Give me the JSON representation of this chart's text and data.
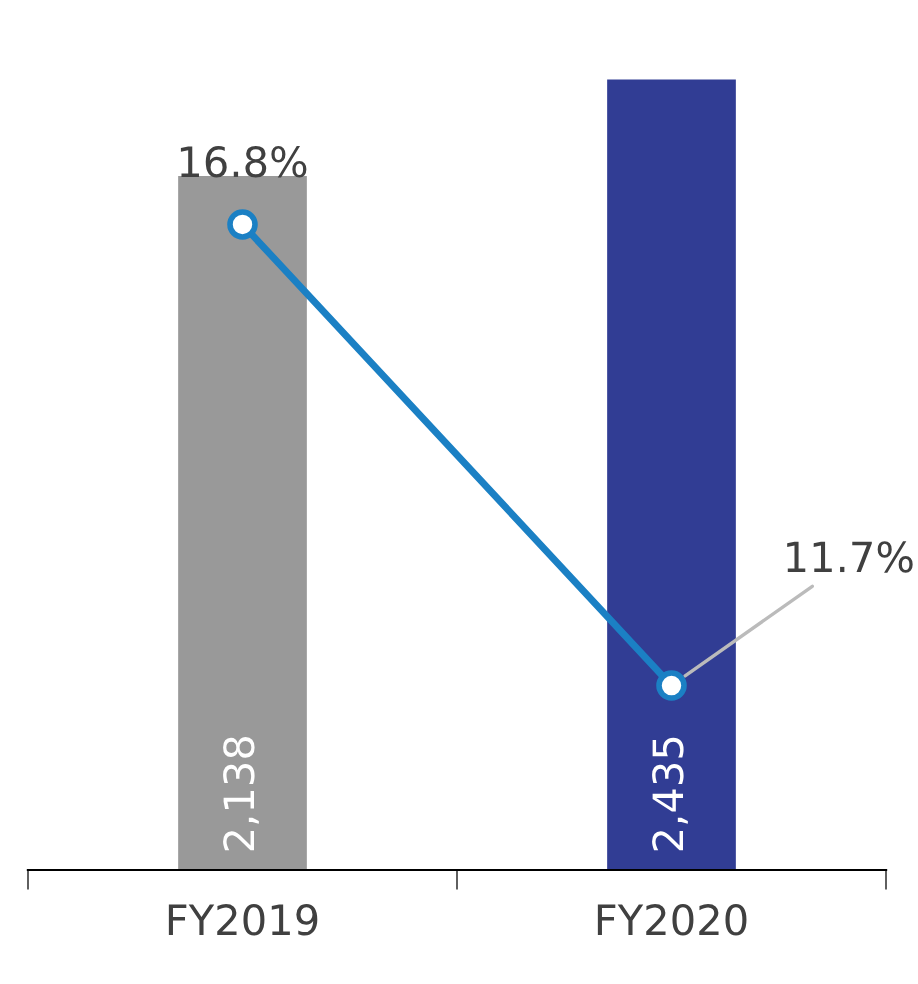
{
  "chart_data": {
    "type": "bar",
    "categories": [
      "FY2019",
      "FY2020"
    ],
    "series": [
      {
        "colors": [
          "#999999",
          "#313d94"
        ],
        "values": [
          2138,
          2435
        ],
        "value_labels": [
          "2,138",
          "2,435"
        ]
      },
      {
        "type": "line",
        "axis": "y2",
        "color": "#1b80c4",
        "values": [
          16.8,
          11.7
        ],
        "value_labels": [
          "16.8%",
          "11.7%"
        ],
        "marker": "circle",
        "line_style": "solid"
      }
    ],
    "tick_labels": "x",
    "grid": false,
    "legend": false
  }
}
